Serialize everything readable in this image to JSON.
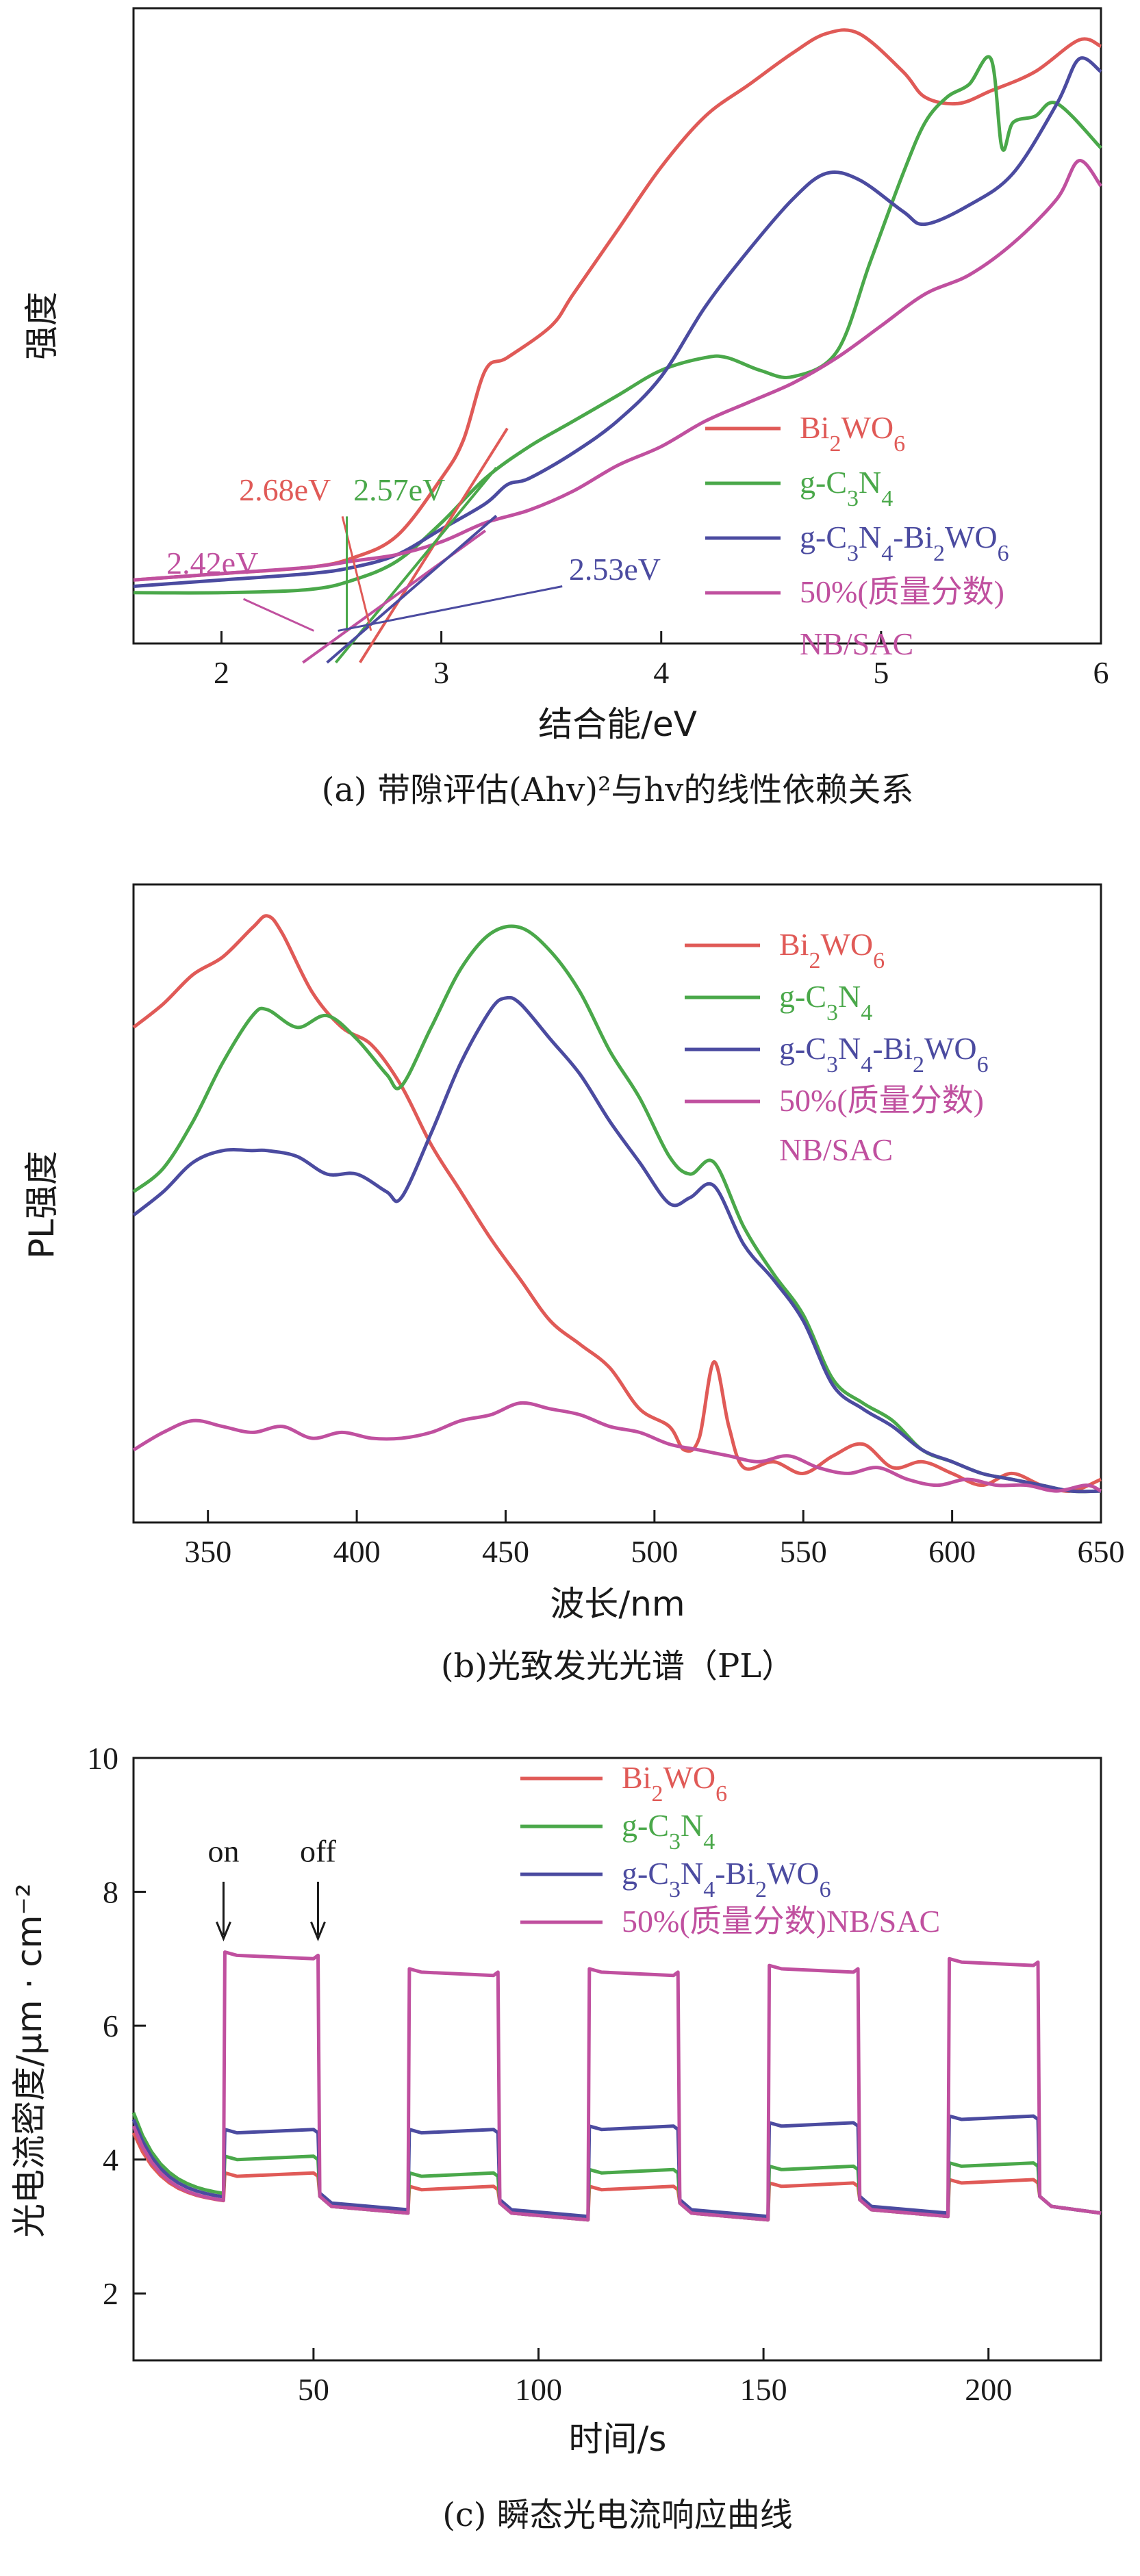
{
  "colors": {
    "bi2wo6": "#e05a57",
    "gcn": "#4aa84a",
    "comp": "#4b4ba0",
    "nbsac": "#c0509f"
  },
  "chart_data": [
    {
      "type": "line",
      "ylabel": "强度",
      "xlabel": "结合能/eV",
      "caption": "(a) 带隙评估(Ahv)²与hv的线性依赖关系",
      "xlim": [
        1.6,
        6.0
      ],
      "ylim": [
        0,
        1
      ],
      "xticks": [
        "2",
        "3",
        "4",
        "5",
        "6"
      ],
      "legend": [
        {
          "label": "Bi2WO6",
          "key": "bi2wo6"
        },
        {
          "label": "g-C3N4",
          "key": "gcn"
        },
        {
          "label": "g-C3N4-Bi2WO6",
          "key": "comp"
        },
        {
          "label": "50%(质量分数)",
          "label2": "NB/SAC",
          "key": "nbsac"
        }
      ],
      "annotations": [
        {
          "text": "2.68eV",
          "key": "bi2wo6",
          "x": 2.68
        },
        {
          "text": "2.57eV",
          "key": "gcn",
          "x": 2.57
        },
        {
          "text": "2.42eV",
          "key": "nbsac",
          "x": 2.42
        },
        {
          "text": "2.53eV",
          "key": "comp",
          "x": 2.53
        }
      ],
      "series": [
        {
          "name": "Bi2WO6",
          "key": "bi2wo6",
          "x": [
            1.6,
            2.0,
            2.4,
            2.6,
            2.8,
            3.0,
            3.1,
            3.2,
            3.3,
            3.5,
            3.6,
            3.8,
            4.0,
            4.2,
            4.4,
            4.6,
            4.75,
            4.9,
            5.1,
            5.2,
            5.35,
            5.5,
            5.7,
            5.9,
            6.0
          ],
          "y": [
            0.1,
            0.11,
            0.12,
            0.135,
            0.17,
            0.26,
            0.32,
            0.43,
            0.45,
            0.5,
            0.55,
            0.65,
            0.75,
            0.83,
            0.88,
            0.93,
            0.96,
            0.96,
            0.9,
            0.86,
            0.85,
            0.87,
            0.9,
            0.95,
            0.94
          ]
        },
        {
          "name": "g-C3N4",
          "key": "gcn",
          "x": [
            1.6,
            2.0,
            2.4,
            2.6,
            2.8,
            3.0,
            3.2,
            3.4,
            3.6,
            3.8,
            4.0,
            4.2,
            4.3,
            4.45,
            4.6,
            4.8,
            4.95,
            5.1,
            5.2,
            5.3,
            5.4,
            5.5,
            5.55,
            5.6,
            5.7,
            5.8,
            6.0
          ],
          "y": [
            0.08,
            0.08,
            0.085,
            0.1,
            0.13,
            0.19,
            0.26,
            0.31,
            0.35,
            0.39,
            0.43,
            0.45,
            0.45,
            0.43,
            0.42,
            0.46,
            0.6,
            0.74,
            0.82,
            0.86,
            0.88,
            0.92,
            0.78,
            0.82,
            0.83,
            0.85,
            0.78
          ]
        },
        {
          "name": "g-C3N4-Bi2WO6",
          "key": "comp",
          "x": [
            1.6,
            2.0,
            2.4,
            2.6,
            2.8,
            3.0,
            3.2,
            3.3,
            3.4,
            3.6,
            3.8,
            4.0,
            4.2,
            4.4,
            4.6,
            4.75,
            4.9,
            5.1,
            5.2,
            5.4,
            5.6,
            5.8,
            5.9,
            6.0
          ],
          "y": [
            0.09,
            0.1,
            0.11,
            0.12,
            0.14,
            0.18,
            0.22,
            0.25,
            0.26,
            0.3,
            0.35,
            0.42,
            0.53,
            0.62,
            0.7,
            0.74,
            0.73,
            0.68,
            0.66,
            0.69,
            0.74,
            0.85,
            0.92,
            0.9
          ]
        },
        {
          "name": "50%(质量分数) NB/SAC",
          "key": "nbsac",
          "x": [
            1.6,
            2.0,
            2.4,
            2.6,
            2.8,
            3.0,
            3.2,
            3.4,
            3.6,
            3.8,
            4.0,
            4.2,
            4.4,
            4.6,
            4.8,
            5.0,
            5.2,
            5.4,
            5.6,
            5.8,
            5.9,
            6.0
          ],
          "y": [
            0.1,
            0.11,
            0.12,
            0.13,
            0.14,
            0.16,
            0.19,
            0.21,
            0.24,
            0.28,
            0.31,
            0.35,
            0.38,
            0.41,
            0.45,
            0.5,
            0.55,
            0.58,
            0.63,
            0.7,
            0.76,
            0.72
          ]
        }
      ]
    },
    {
      "type": "line",
      "ylabel": "PL强度",
      "xlabel": "波长/nm",
      "caption": "(b)光致发光光谱（PL）",
      "xlim": [
        325,
        650
      ],
      "ylim": [
        0,
        1
      ],
      "xticks": [
        "350",
        "400",
        "450",
        "500",
        "550",
        "600",
        "650"
      ],
      "legend": [
        {
          "label": "Bi2WO6",
          "key": "bi2wo6"
        },
        {
          "label": "g-C3N4",
          "key": "gcn"
        },
        {
          "label": "g-C3N4-Bi2WO6",
          "key": "comp"
        },
        {
          "label": "50%(质量分数)",
          "label2": "NB/SAC",
          "key": "nbsac"
        }
      ],
      "series": [
        {
          "name": "Bi2WO6",
          "key": "bi2wo6",
          "x": [
            325,
            335,
            345,
            355,
            365,
            370,
            375,
            385,
            395,
            405,
            415,
            425,
            435,
            445,
            455,
            465,
            475,
            485,
            495,
            505,
            510,
            515,
            520,
            525,
            530,
            540,
            550,
            560,
            570,
            580,
            590,
            600,
            610,
            620,
            630,
            640,
            650
          ],
          "y": [
            0.8,
            0.84,
            0.89,
            0.92,
            0.97,
            0.99,
            0.96,
            0.86,
            0.8,
            0.77,
            0.7,
            0.6,
            0.52,
            0.44,
            0.37,
            0.3,
            0.26,
            0.22,
            0.15,
            0.12,
            0.08,
            0.1,
            0.23,
            0.12,
            0.05,
            0.06,
            0.04,
            0.07,
            0.09,
            0.05,
            0.06,
            0.04,
            0.02,
            0.04,
            0.02,
            0.01,
            0.03
          ]
        },
        {
          "name": "g-C3N4",
          "key": "gcn",
          "x": [
            325,
            335,
            345,
            355,
            365,
            370,
            380,
            390,
            400,
            410,
            415,
            425,
            435,
            445,
            455,
            465,
            475,
            485,
            495,
            505,
            512,
            520,
            530,
            540,
            550,
            560,
            570,
            580,
            590,
            600,
            610,
            620,
            630,
            640,
            650
          ],
          "y": [
            0.52,
            0.56,
            0.64,
            0.74,
            0.82,
            0.83,
            0.8,
            0.82,
            0.78,
            0.72,
            0.7,
            0.8,
            0.9,
            0.96,
            0.97,
            0.93,
            0.86,
            0.76,
            0.68,
            0.58,
            0.55,
            0.57,
            0.46,
            0.38,
            0.31,
            0.2,
            0.16,
            0.13,
            0.08,
            0.06,
            0.04,
            0.03,
            0.02,
            0.01,
            0.01
          ]
        },
        {
          "name": "g-C3N4-Bi2WO6",
          "key": "comp",
          "x": [
            325,
            335,
            345,
            355,
            365,
            370,
            380,
            390,
            400,
            410,
            415,
            425,
            435,
            445,
            450,
            455,
            465,
            475,
            485,
            495,
            505,
            512,
            520,
            530,
            540,
            550,
            560,
            570,
            580,
            590,
            600,
            610,
            620,
            630,
            640,
            650
          ],
          "y": [
            0.48,
            0.52,
            0.57,
            0.59,
            0.59,
            0.59,
            0.58,
            0.55,
            0.55,
            0.52,
            0.51,
            0.62,
            0.74,
            0.83,
            0.85,
            0.84,
            0.78,
            0.72,
            0.64,
            0.57,
            0.5,
            0.51,
            0.53,
            0.43,
            0.37,
            0.3,
            0.19,
            0.15,
            0.12,
            0.08,
            0.06,
            0.04,
            0.03,
            0.02,
            0.01,
            0.01
          ]
        },
        {
          "name": "50%(质量分数) NB/SAC",
          "key": "nbsac",
          "x": [
            325,
            335,
            345,
            355,
            365,
            375,
            385,
            395,
            405,
            415,
            425,
            435,
            445,
            455,
            465,
            475,
            485,
            495,
            505,
            515,
            525,
            535,
            545,
            555,
            565,
            575,
            585,
            595,
            605,
            615,
            625,
            635,
            645,
            650
          ],
          "y": [
            0.08,
            0.11,
            0.13,
            0.12,
            0.11,
            0.12,
            0.1,
            0.11,
            0.1,
            0.1,
            0.11,
            0.13,
            0.14,
            0.16,
            0.15,
            0.14,
            0.12,
            0.11,
            0.09,
            0.08,
            0.07,
            0.06,
            0.07,
            0.05,
            0.04,
            0.05,
            0.03,
            0.02,
            0.03,
            0.02,
            0.02,
            0.01,
            0.02,
            0.01
          ]
        }
      ]
    },
    {
      "type": "line",
      "ylabel": "光电流密度/μm · cm⁻²",
      "xlabel": "时间/s",
      "caption": "(c) 瞬态光电流响应曲线",
      "xlim": [
        10,
        225
      ],
      "ylim": [
        1,
        10
      ],
      "xticks": [
        "50",
        "100",
        "150",
        "200"
      ],
      "yticks": [
        "2",
        "4",
        "6",
        "8",
        "10"
      ],
      "legend": [
        {
          "label": "Bi2WO6",
          "key": "bi2wo6"
        },
        {
          "label": "g-C3N4",
          "key": "gcn"
        },
        {
          "label": "g-C3N4-Bi2WO6",
          "key": "comp"
        },
        {
          "label": "50%(质量分数)NB/SAC",
          "key": "nbsac"
        }
      ],
      "arrows": [
        {
          "label": "on",
          "x": 30
        },
        {
          "label": "off",
          "x": 51
        }
      ],
      "on_intervals": [
        [
          30,
          51
        ],
        [
          71,
          91
        ],
        [
          111,
          131
        ],
        [
          151,
          171
        ],
        [
          191,
          211
        ]
      ],
      "series": [
        {
          "name": "Bi2WO6",
          "key": "bi2wo6",
          "dark": [
            4.4,
            3.4,
            3.2,
            3.1,
            3.1,
            3.15,
            3.2
          ],
          "on": [
            3.75,
            3.55,
            3.55,
            3.6,
            3.65
          ]
        },
        {
          "name": "g-C3N4",
          "key": "gcn",
          "dark": [
            4.7,
            3.5,
            3.2,
            3.1,
            3.1,
            3.15,
            3.2
          ],
          "on": [
            4.0,
            3.75,
            3.8,
            3.85,
            3.9
          ]
        },
        {
          "name": "g-C3N4-Bi2WO6",
          "key": "comp",
          "dark": [
            4.6,
            3.45,
            3.25,
            3.15,
            3.15,
            3.2,
            3.2
          ],
          "on": [
            4.4,
            4.4,
            4.45,
            4.5,
            4.6
          ]
        },
        {
          "name": "50%(质量分数)NB/SAC",
          "key": "nbsac",
          "dark": [
            4.5,
            3.4,
            3.2,
            3.1,
            3.1,
            3.15,
            3.2
          ],
          "on": [
            7.05,
            6.8,
            6.8,
            6.85,
            6.95
          ]
        }
      ]
    }
  ]
}
